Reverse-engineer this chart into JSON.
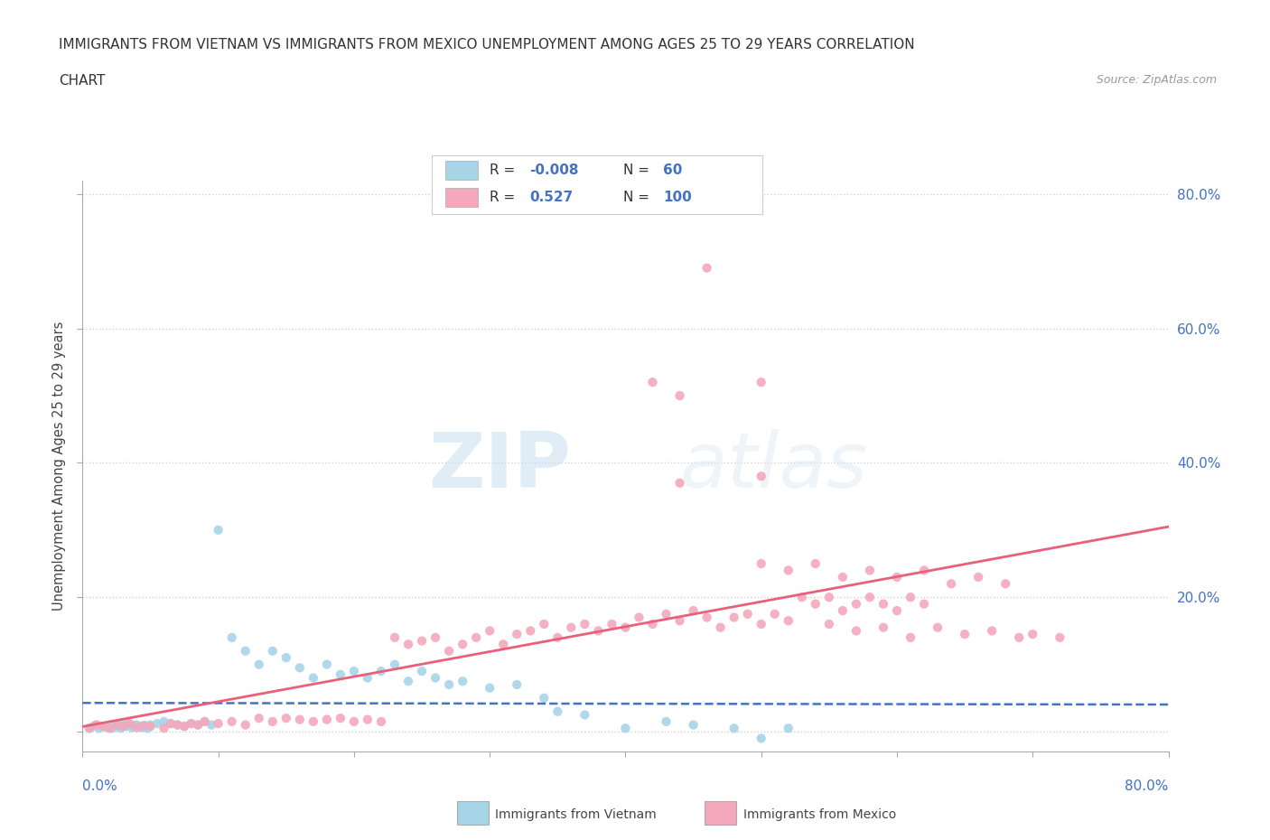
{
  "title_line1": "IMMIGRANTS FROM VIETNAM VS IMMIGRANTS FROM MEXICO UNEMPLOYMENT AMONG AGES 25 TO 29 YEARS CORRELATION",
  "title_line2": "CHART",
  "source_text": "Source: ZipAtlas.com",
  "ylabel": "Unemployment Among Ages 25 to 29 years",
  "xlim": [
    0,
    0.8
  ],
  "ylim": [
    -0.03,
    0.82
  ],
  "y_ticks": [
    0.0,
    0.2,
    0.4,
    0.6,
    0.8
  ],
  "y_tick_labels_right": [
    "",
    "20.0%",
    "40.0%",
    "60.0%",
    "80.0%"
  ],
  "vietnam_color": "#a8d4e8",
  "mexico_color": "#f4a8bc",
  "vietnam_line_color": "#4472c4",
  "mexico_line_color": "#e8607a",
  "background_color": "#ffffff",
  "grid_color": "#d0d0d0",
  "watermark_color": "#ddeef8",
  "legend_label_vietnam": "Immigrants from Vietnam",
  "legend_label_mexico": "Immigrants from Mexico",
  "vietnam_scatter": [
    [
      0.005,
      0.005
    ],
    [
      0.008,
      0.008
    ],
    [
      0.01,
      0.01
    ],
    [
      0.012,
      0.005
    ],
    [
      0.015,
      0.008
    ],
    [
      0.018,
      0.006
    ],
    [
      0.02,
      0.01
    ],
    [
      0.022,
      0.005
    ],
    [
      0.025,
      0.008
    ],
    [
      0.028,
      0.005
    ],
    [
      0.03,
      0.012
    ],
    [
      0.032,
      0.008
    ],
    [
      0.034,
      0.01
    ],
    [
      0.036,
      0.006
    ],
    [
      0.038,
      0.009
    ],
    [
      0.04,
      0.01
    ],
    [
      0.042,
      0.008
    ],
    [
      0.044,
      0.006
    ],
    [
      0.046,
      0.009
    ],
    [
      0.048,
      0.005
    ],
    [
      0.05,
      0.01
    ],
    [
      0.055,
      0.012
    ],
    [
      0.06,
      0.015
    ],
    [
      0.065,
      0.012
    ],
    [
      0.07,
      0.01
    ],
    [
      0.075,
      0.008
    ],
    [
      0.08,
      0.012
    ],
    [
      0.085,
      0.01
    ],
    [
      0.09,
      0.015
    ],
    [
      0.095,
      0.01
    ],
    [
      0.1,
      0.3
    ],
    [
      0.11,
      0.14
    ],
    [
      0.12,
      0.12
    ],
    [
      0.13,
      0.1
    ],
    [
      0.14,
      0.12
    ],
    [
      0.15,
      0.11
    ],
    [
      0.16,
      0.095
    ],
    [
      0.17,
      0.08
    ],
    [
      0.18,
      0.1
    ],
    [
      0.19,
      0.085
    ],
    [
      0.2,
      0.09
    ],
    [
      0.21,
      0.08
    ],
    [
      0.22,
      0.09
    ],
    [
      0.23,
      0.1
    ],
    [
      0.24,
      0.075
    ],
    [
      0.25,
      0.09
    ],
    [
      0.26,
      0.08
    ],
    [
      0.27,
      0.07
    ],
    [
      0.28,
      0.075
    ],
    [
      0.3,
      0.065
    ],
    [
      0.32,
      0.07
    ],
    [
      0.34,
      0.05
    ],
    [
      0.35,
      0.03
    ],
    [
      0.37,
      0.025
    ],
    [
      0.4,
      0.005
    ],
    [
      0.43,
      0.015
    ],
    [
      0.45,
      0.01
    ],
    [
      0.48,
      0.005
    ],
    [
      0.5,
      -0.01
    ],
    [
      0.52,
      0.005
    ]
  ],
  "mexico_scatter": [
    [
      0.005,
      0.005
    ],
    [
      0.01,
      0.01
    ],
    [
      0.015,
      0.008
    ],
    [
      0.02,
      0.005
    ],
    [
      0.025,
      0.01
    ],
    [
      0.03,
      0.008
    ],
    [
      0.035,
      0.012
    ],
    [
      0.04,
      0.006
    ],
    [
      0.045,
      0.009
    ],
    [
      0.05,
      0.008
    ],
    [
      0.06,
      0.005
    ],
    [
      0.065,
      0.012
    ],
    [
      0.07,
      0.01
    ],
    [
      0.075,
      0.008
    ],
    [
      0.08,
      0.012
    ],
    [
      0.085,
      0.01
    ],
    [
      0.09,
      0.015
    ],
    [
      0.1,
      0.012
    ],
    [
      0.11,
      0.015
    ],
    [
      0.12,
      0.01
    ],
    [
      0.13,
      0.02
    ],
    [
      0.14,
      0.015
    ],
    [
      0.15,
      0.02
    ],
    [
      0.16,
      0.018
    ],
    [
      0.17,
      0.015
    ],
    [
      0.18,
      0.018
    ],
    [
      0.19,
      0.02
    ],
    [
      0.2,
      0.015
    ],
    [
      0.21,
      0.018
    ],
    [
      0.22,
      0.015
    ],
    [
      0.23,
      0.14
    ],
    [
      0.24,
      0.13
    ],
    [
      0.25,
      0.135
    ],
    [
      0.26,
      0.14
    ],
    [
      0.27,
      0.12
    ],
    [
      0.28,
      0.13
    ],
    [
      0.29,
      0.14
    ],
    [
      0.3,
      0.15
    ],
    [
      0.31,
      0.13
    ],
    [
      0.32,
      0.145
    ],
    [
      0.33,
      0.15
    ],
    [
      0.34,
      0.16
    ],
    [
      0.35,
      0.14
    ],
    [
      0.36,
      0.155
    ],
    [
      0.37,
      0.16
    ],
    [
      0.38,
      0.15
    ],
    [
      0.39,
      0.16
    ],
    [
      0.4,
      0.155
    ],
    [
      0.41,
      0.17
    ],
    [
      0.42,
      0.16
    ],
    [
      0.43,
      0.175
    ],
    [
      0.44,
      0.165
    ],
    [
      0.45,
      0.18
    ],
    [
      0.46,
      0.17
    ],
    [
      0.47,
      0.155
    ],
    [
      0.48,
      0.17
    ],
    [
      0.49,
      0.175
    ],
    [
      0.5,
      0.16
    ],
    [
      0.51,
      0.175
    ],
    [
      0.52,
      0.165
    ],
    [
      0.42,
      0.52
    ],
    [
      0.44,
      0.5
    ],
    [
      0.44,
      0.37
    ],
    [
      0.5,
      0.38
    ],
    [
      0.53,
      0.2
    ],
    [
      0.54,
      0.19
    ],
    [
      0.55,
      0.2
    ],
    [
      0.56,
      0.18
    ],
    [
      0.57,
      0.19
    ],
    [
      0.58,
      0.2
    ],
    [
      0.59,
      0.19
    ],
    [
      0.6,
      0.18
    ],
    [
      0.61,
      0.2
    ],
    [
      0.62,
      0.19
    ],
    [
      0.5,
      0.25
    ],
    [
      0.52,
      0.24
    ],
    [
      0.54,
      0.25
    ],
    [
      0.56,
      0.23
    ],
    [
      0.58,
      0.24
    ],
    [
      0.6,
      0.23
    ],
    [
      0.62,
      0.24
    ],
    [
      0.64,
      0.22
    ],
    [
      0.66,
      0.23
    ],
    [
      0.68,
      0.22
    ],
    [
      0.55,
      0.16
    ],
    [
      0.57,
      0.15
    ],
    [
      0.59,
      0.155
    ],
    [
      0.61,
      0.14
    ],
    [
      0.63,
      0.155
    ],
    [
      0.65,
      0.145
    ],
    [
      0.67,
      0.15
    ],
    [
      0.69,
      0.14
    ],
    [
      0.7,
      0.145
    ],
    [
      0.72,
      0.14
    ],
    [
      0.46,
      0.69
    ],
    [
      0.5,
      0.52
    ]
  ]
}
